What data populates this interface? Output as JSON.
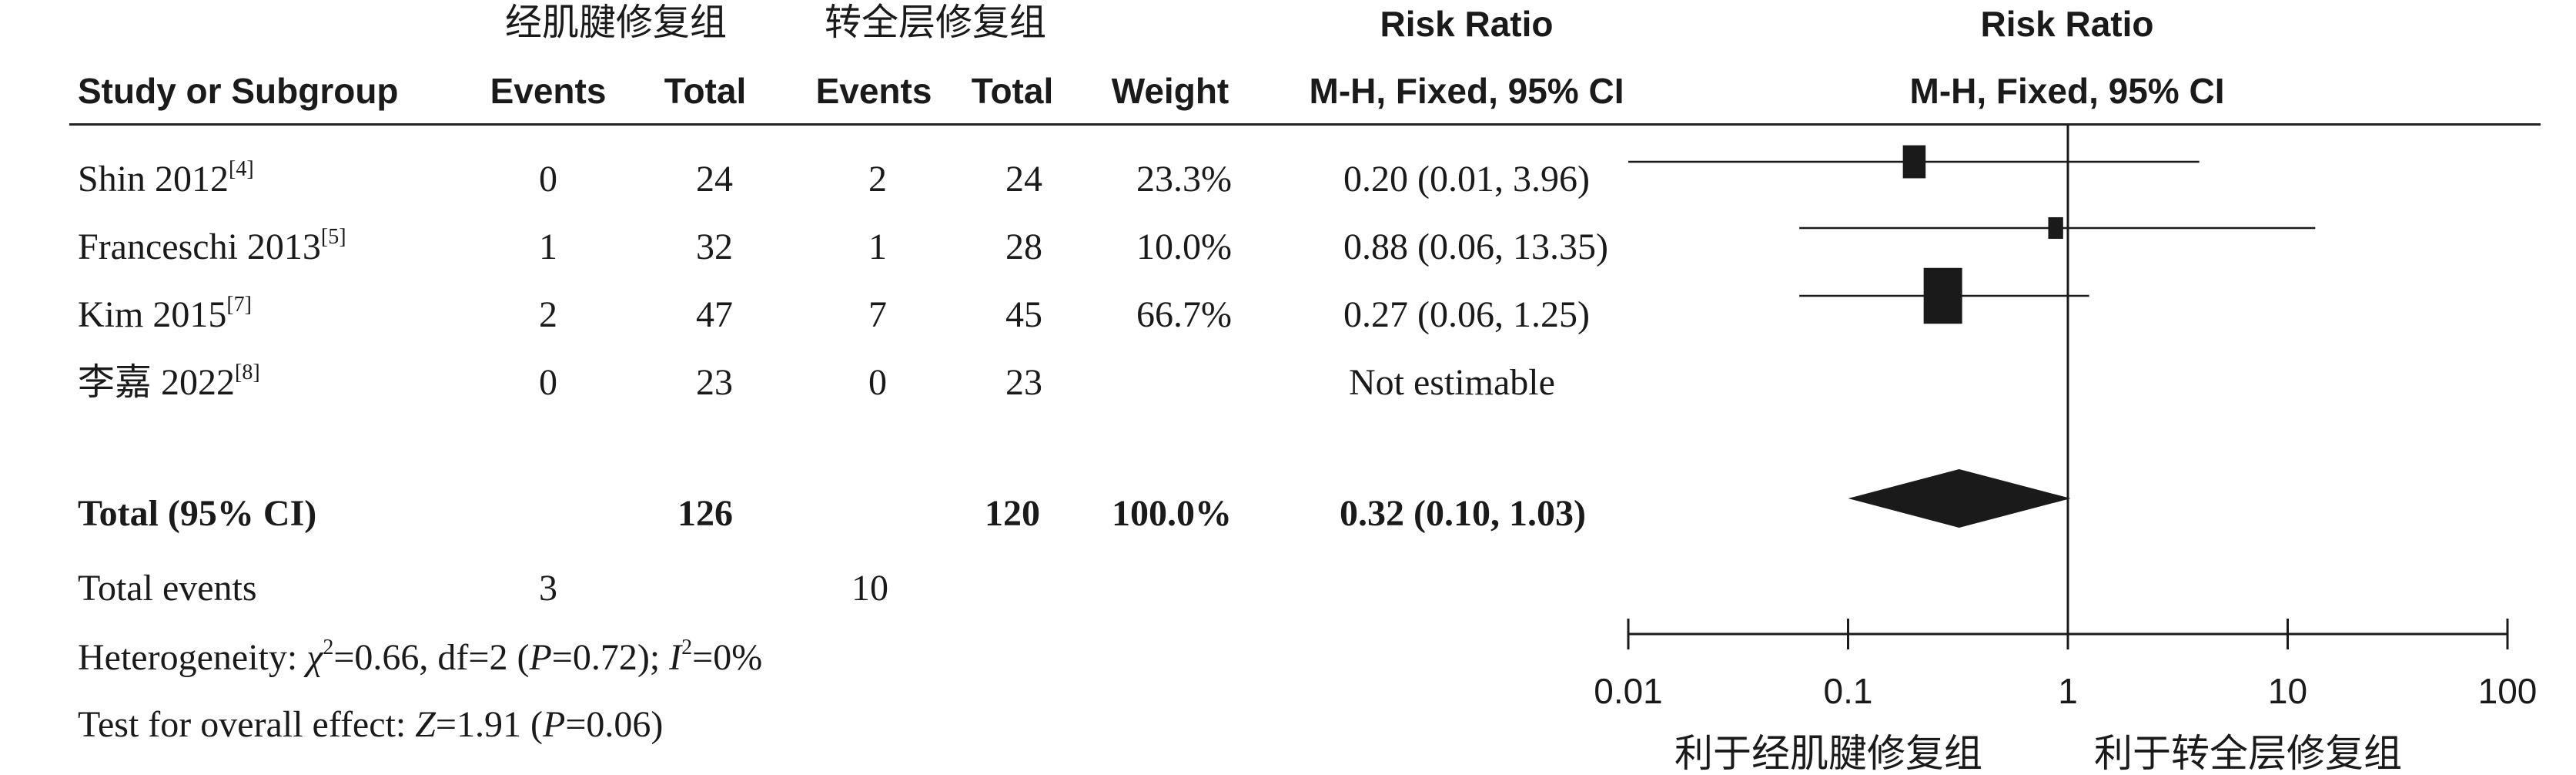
{
  "groups": {
    "experimental": "经肌腱修复组",
    "control": "转全层修复组"
  },
  "headers": {
    "study": "Study or Subgroup",
    "events": "Events",
    "total": "Total",
    "weight": "Weight",
    "rr_title": "Risk Ratio",
    "rr_method": "M-H, Fixed, 95% CI"
  },
  "studies": [
    {
      "name": "Shin 2012",
      "ref": "[4]",
      "e_events": "0",
      "e_total": "24",
      "c_events": "2",
      "c_total": "24",
      "weight": "23.3%",
      "ci_text": "0.20 (0.01, 3.96)"
    },
    {
      "name": "Franceschi 2013",
      "ref": "[5]",
      "e_events": "1",
      "e_total": "32",
      "c_events": "1",
      "c_total": "28",
      "weight": "10.0%",
      "ci_text": "0.88 (0.06, 13.35)"
    },
    {
      "name": "Kim 2015",
      "ref": "[7]",
      "e_events": "2",
      "e_total": "47",
      "c_events": "7",
      "c_total": "45",
      "weight": "66.7%",
      "ci_text": "0.27 (0.06, 1.25)"
    },
    {
      "name": "李嘉 2022",
      "ref": "[8]",
      "e_events": "0",
      "e_total": "23",
      "c_events": "0",
      "c_total": "23",
      "weight": "",
      "ci_text": "Not estimable"
    }
  ],
  "total": {
    "label": "Total (95% CI)",
    "e_total": "126",
    "c_total": "120",
    "weight": "100.0%",
    "ci_text": "0.32 (0.10, 1.03)"
  },
  "total_events": {
    "label": "Total events",
    "e_events": "3",
    "c_events": "10"
  },
  "heterogeneity": {
    "prefix": "Heterogeneity: ",
    "chi_symbol": "χ",
    "chi_sup": "2",
    "chi_rest": "=0.66, df=2 (",
    "p_symbol": "P",
    "p_rest": "=0.72); ",
    "i_symbol": "I",
    "i_sup": "2",
    "i_rest": "=0%"
  },
  "overall_effect": {
    "prefix": "Test for overall effect: ",
    "z_symbol": "Z",
    "z_rest": "=1.91 (",
    "p_symbol": "P",
    "p_rest": "=0.06)"
  },
  "chart_data": {
    "type": "forest",
    "title": "Risk Ratio",
    "subtitle": "M-H, Fixed, 95% CI",
    "x_scale": "log",
    "xlim": [
      0.01,
      100
    ],
    "ticks": [
      0.01,
      0.1,
      1,
      10,
      100
    ],
    "tick_labels": [
      "0.01",
      "0.1",
      "1",
      "10",
      "100"
    ],
    "reference_line": 1,
    "favours_left": "利于经肌腱修复组",
    "favours_right": "利于转全层修复组",
    "studies": [
      {
        "name": "Shin 2012",
        "rr": 0.2,
        "lower": 0.01,
        "upper": 3.96,
        "weight": 23.3
      },
      {
        "name": "Franceschi 2013",
        "rr": 0.88,
        "lower": 0.06,
        "upper": 13.35,
        "weight": 10.0
      },
      {
        "name": "Kim 2015",
        "rr": 0.27,
        "lower": 0.06,
        "upper": 1.25,
        "weight": 66.7
      },
      {
        "name": "李嘉 2022",
        "rr": null,
        "lower": null,
        "upper": null,
        "weight": null
      }
    ],
    "pooled": {
      "rr": 0.32,
      "lower": 0.1,
      "upper": 1.03
    }
  }
}
